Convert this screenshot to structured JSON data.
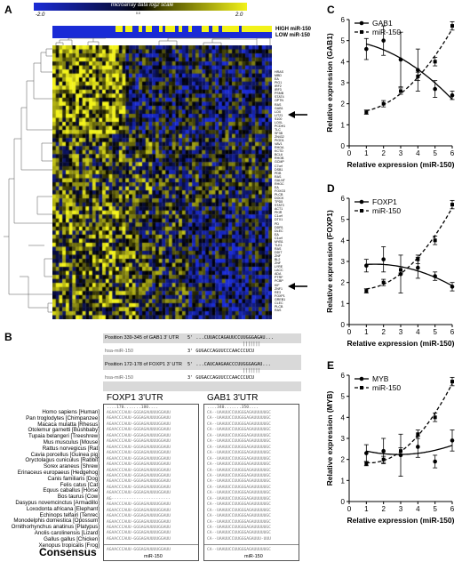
{
  "panels": {
    "A": "A",
    "B": "B",
    "C": "C",
    "D": "D",
    "E": "E"
  },
  "heatmap": {
    "scale_title": "microarray data log2 scale",
    "scale_min": "-2.0",
    "scale_mid": "0.0",
    "scale_max": "2.0",
    "high_label": "HIGH miR-150",
    "low_label": "LOW miR-150",
    "colors": {
      "low": "#1a2bd6",
      "mid": "#000000",
      "high": "#f2f21a"
    },
    "genes": [
      "HRAS",
      "MBD",
      "EA",
      "PIG1",
      "IRF2",
      "IRF3",
      "PSMB",
      "STAT4",
      "OPTN",
      "RAS",
      "GAB1",
      "LOX",
      "LITZ1",
      "S100",
      "LOXL",
      "PCDH1",
      "TLC",
      "SF3B",
      "ZN432",
      "PIGD1",
      "VAV1",
      "RHOA",
      "KCTD",
      "BCL6",
      "RHOB",
      "GCMP",
      "C7orf",
      "DSB1",
      "PDB",
      "RAS",
      "GALNT",
      "RHOC",
      "EA",
      "FOXO3",
      "PLCB",
      "DOCK",
      "TPD5",
      "STAT3",
      "ACT1",
      "PKIR",
      "C1orf",
      "DTX1",
      "PD",
      "DDR1",
      "DLEC",
      "EA",
      "C1orf",
      "MYB1",
      "TLE1",
      "RAS",
      "DDIT",
      "ZNF",
      "BL2",
      "ZNF",
      "LYRE",
      "LACC",
      "ADA",
      "PTRF",
      "PCBP",
      "KIF",
      "ZNF1",
      "RE3",
      "FOXP1",
      "GREB1",
      "CLEC",
      "PLCB",
      "RAS"
    ]
  },
  "panel_b": {
    "gab1_position": "Position 339-345 of GAB1 3' UTR",
    "gab1_utr_seq": "5' ...CUUACCAGAUUCCUUGGGAGAU...",
    "gab1_mir_seq": "3'    GUGACCAGUUCCCAACCCUCU",
    "foxp1_position": "Position 172-178 of FOXP1 3' UTR",
    "foxp1_utr_seq": "5' ...CAUCAAGAACCCUUGGGAGAU...",
    "foxp1_mir_seq": "3'    GUGACCAGUUCCCAACCCUCU",
    "mir_label": "hsa-miR-150",
    "foxp1_header": "FOXP1 3'UTR",
    "gab1_header": "GAB1 3'UTR",
    "foxp1_ticks": "....170.......180....",
    "gab1_ticks": "....340.......350....",
    "species": [
      "Homo sapiens [Human]",
      "Pan troglodytes [Chimpanzee]",
      "Macaca mulatta [Rhesus]",
      "Otolemur garnetti [Bushbaby]",
      "Tupaia belangeri [Treeshrew]",
      "Mus musculus [Mouse]",
      "Rattus norvegicus [Rat]",
      "Cavia porcellus [Guinea pig]",
      "Oryctolagus cuniculus [Rabbit]",
      "Sorex araneus [Shrew]",
      "Erinaceus europaeus [Hedgehog]",
      "Canis familiaris [Dog]",
      "Felis catus [Cat]",
      "Equus caballus [Horse]",
      "Bos taurus [Cow]",
      "Dasypus novemcinctus [Armadillo]",
      "Loxodonta africana [Elephant]",
      "Echinops telfairi [Tenrec]",
      "Monodelphis domestica [Opossum]",
      "Ornithorhynchus anatinus [Platypus]",
      "Anolis carolinensis [Lizard]",
      "Gallus gallus [Chicken]",
      "Xenopus tropicalis [Frog]"
    ],
    "foxp1_seqs": [
      "AGAACCCAUU-GGGAGAUUUUGGAUU",
      "AGAACCCAUU-GGGAGAUUUUGGAUU",
      "AGAACCCAUU-GGGAGAUUUUGGAUU",
      "AGAACCCAUU-GGGAGAUUUUGGAUU",
      "AGAACCCAUU-GGGAGAUUUUGGAUU",
      "AGAACCCAUU-GGGAGAUUUUGGAUU",
      "AGAACCCAUU-GGGAGAUUUUGGAUU",
      "AGAACCCAUU-GGGAGAUUUUGGAUU",
      "AGAACCCAUU-GGGAGAUUUUGGAUU",
      "AGAACCCAUU-GGGAGAUUUUGGAUU",
      "AGAACCCAUU-GGGAGAUUUUGGAUU",
      "AGAACCCAUU-GGGAGAUUUUGGAUU",
      "AGAACCCAUU-GGGAGAUUUUGGAUU",
      "AGAACCCAUU-GGGAGAUUUUGGAUU",
      "AGAACCCAUU-GGGAGAUUUUGGAUU",
      "AG------------------------",
      "AGAACCCAUU-GGGAGAUUUUGGAUU",
      "AGAACCCAUU-GGGAGAUUUUGGAUU",
      "AGAACCCAUU-GGGAGAUUUUGGAUU",
      "AGAACCCAUU-GGGAGAUUUUGGAUU",
      "AGAACCCAUU-GGGAGAUUUUGGAUU",
      "AGAACCCAUU-GGGAGAUUUUGGAUU",
      "AGAACCCAUU-GGGAGAUUUUGGAUU"
    ],
    "gab1_seqs": [
      "CA--UAAUUCCUUGGGAGAUUUUUGC",
      "CA--UAAUUCCUUGGGAGAUUUUUGC",
      "CA--UAAUUCCUUGGGAGAUUUUUGC",
      "CA--UAAUUCCUUGGGAGAUUUUUGC",
      "CA--UAAUUCCUUGGGAGAUUUUUGC",
      "CA--UAAUUCCUUGGGAGAUUUUUGC",
      "CA--UAAUUCCUUGGGAGAUUUUUGC",
      "CA--UAAUUCCUUGGGAGAUUUUUGC",
      "CA--UAAUUCCUUGGGAGAUUUUUGC",
      "CA--UAAUUCCUUGGGAGAUUUUUGC",
      "CA--UAAUUCCUUGGGAGAUUUUUGC",
      "CA--UAAUUCCUUGGGAGAUUUUUGC",
      "CA--UAAUUCCUUGGGAGAUUUUUGC",
      "CA--UAAUUCCUUGGGAGAUUUUUGC",
      "CA--UAAUUCCUUGGGAGAUUUUUGC",
      "CA--UAAUUCCUUGGGAGAUUUUUGC",
      "CA--UAAUUCCUUGGGAGAUUUUUGC",
      "CA--UAAUUCCUUGGGAGAUUUUUGC",
      "CA--UAAUUCCUUGGGAGAUUUUUGC",
      "CA--UAAUUCCUUGGGAGAUUUUUGC",
      "CA--UAAUUCCUUGGGAGAUUUUUGC",
      "CA--UAAUUCCUUGGGAGAUUUUUGC",
      "CA--UAAUUCCUUGGGAGAUUU-UUU"
    ],
    "consensus_label": "Consensus",
    "foxp1_consensus": "AGAACCCAUU-GGGAGAUUUUGGAUU",
    "gab1_consensus": "CA--UAAUUCCUUGGGAGAUUUUUGC",
    "mir_bottom_left": "miR-150",
    "mir_bottom_right": "miR-150"
  },
  "chart_data": [
    {
      "type": "line",
      "panel": "C",
      "series": [
        {
          "name": "GAB1",
          "style": "solid",
          "x": [
            1,
            2,
            3,
            4,
            5,
            6
          ],
          "y": [
            4.6,
            5.0,
            4.1,
            3.6,
            2.7,
            2.4
          ],
          "err": [
            0.5,
            0.7,
            1.3,
            1.0,
            0.4,
            0.2
          ]
        },
        {
          "name": "miR-150",
          "style": "dashed",
          "x": [
            1,
            2,
            3,
            4,
            5,
            6
          ],
          "y": [
            1.6,
            2.0,
            2.6,
            3.3,
            4.0,
            5.7
          ],
          "err": [
            0.1,
            0.15,
            0.15,
            0.2,
            0.2,
            0.2
          ]
        }
      ],
      "xlabel": "Relative expression (miR-150)",
      "ylabel": "Relative expression (GAB1)",
      "xlim": [
        0,
        6
      ],
      "ylim": [
        0,
        6
      ],
      "xticks": [
        0,
        1,
        2,
        3,
        4,
        5,
        6
      ],
      "yticks": [
        0,
        1,
        2,
        3,
        4,
        5,
        6
      ],
      "legend": "top-left"
    },
    {
      "type": "line",
      "panel": "D",
      "series": [
        {
          "name": "FOXP1",
          "style": "solid",
          "x": [
            1,
            2,
            3,
            4,
            5,
            6
          ],
          "y": [
            2.8,
            3.1,
            2.4,
            2.7,
            2.3,
            1.8
          ],
          "err": [
            0.3,
            0.6,
            0.9,
            0.5,
            0.2,
            0.2
          ]
        },
        {
          "name": "miR-150",
          "style": "dashed",
          "x": [
            1,
            2,
            3,
            4,
            5,
            6
          ],
          "y": [
            1.6,
            2.0,
            2.6,
            3.1,
            4.0,
            5.7
          ],
          "err": [
            0.1,
            0.15,
            0.15,
            0.2,
            0.2,
            0.2
          ]
        }
      ],
      "xlabel": "Relative expression (miR-150)",
      "ylabel": "Relative expression (FOXP1)",
      "xlim": [
        0,
        6
      ],
      "ylim": [
        0,
        6
      ],
      "xticks": [
        0,
        1,
        2,
        3,
        4,
        5,
        6
      ],
      "yticks": [
        0,
        1,
        2,
        3,
        4,
        5,
        6
      ],
      "legend": "top-left"
    },
    {
      "type": "line",
      "panel": "E",
      "series": [
        {
          "name": "MYB",
          "style": "solid",
          "x": [
            1,
            2,
            3,
            4,
            5,
            6
          ],
          "y": [
            2.3,
            2.4,
            2.2,
            2.6,
            1.9,
            2.9
          ],
          "err": [
            0.4,
            0.6,
            1.0,
            0.5,
            0.3,
            0.5
          ]
        },
        {
          "name": "miR-150",
          "style": "dashed",
          "x": [
            1,
            2,
            3,
            4,
            5,
            6
          ],
          "y": [
            1.8,
            2.0,
            2.4,
            3.2,
            4.0,
            5.7
          ],
          "err": [
            0.1,
            0.15,
            0.15,
            0.2,
            0.2,
            0.2
          ]
        }
      ],
      "xlabel": "Relative expression (miR-150)",
      "ylabel": "Relative expression (MYB)",
      "xlim": [
        0,
        6
      ],
      "ylim": [
        0,
        6
      ],
      "xticks": [
        0,
        1,
        2,
        3,
        4,
        5,
        6
      ],
      "yticks": [
        0,
        1,
        2,
        3,
        4,
        5,
        6
      ],
      "legend": "top-left"
    }
  ]
}
